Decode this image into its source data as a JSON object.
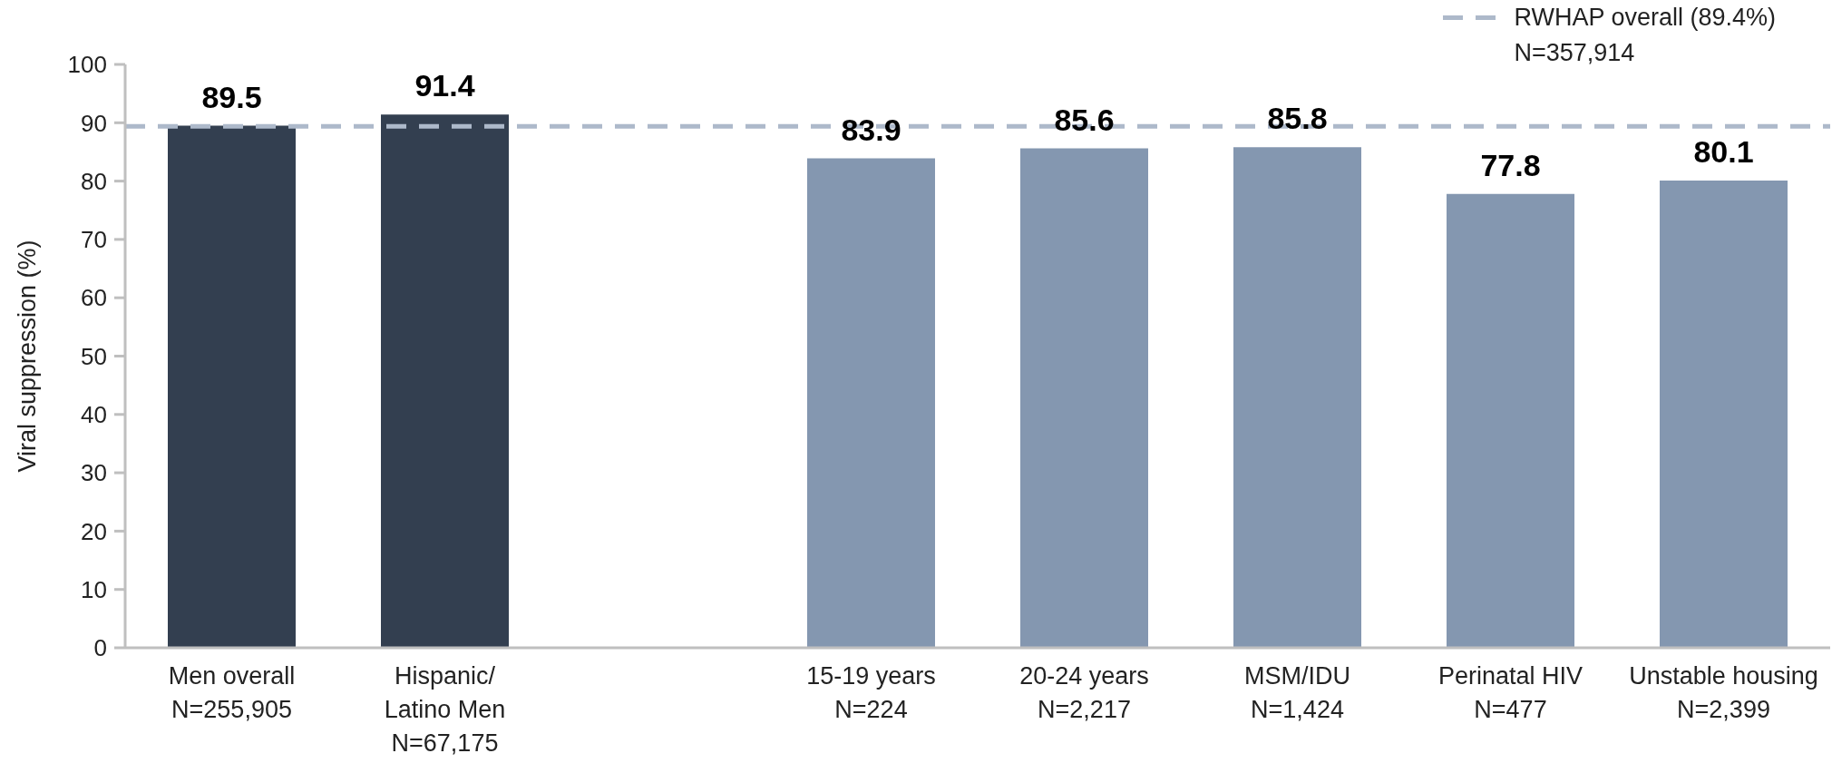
{
  "chart_data": {
    "type": "bar",
    "ylabel": "Viral suppression (%)",
    "categories": [
      "Men overall\nN=255,905",
      "Hispanic/\nLatino Men\nN=67,175",
      null,
      "15-19 years\nN=224",
      "20-24 years\nN=2,217",
      "MSM/IDU\nN=1,424",
      "Perinatal HIV\nN=477",
      "Unstable housing\nN=2,399"
    ],
    "values": [
      89.5,
      91.4,
      null,
      83.9,
      85.6,
      85.8,
      77.8,
      80.1
    ],
    "colors": [
      "#333f50",
      "#333f50",
      null,
      "#8497b0",
      "#8497b0",
      "#8497b0",
      "#8497b0",
      "#8497b0"
    ],
    "ylim": [
      0,
      100
    ],
    "yticks": [
      0,
      10,
      20,
      30,
      40,
      50,
      60,
      70,
      80,
      90,
      100
    ],
    "data_labels": true,
    "ref_lines": [
      {
        "axis": "y",
        "value": 89.4,
        "label": "RWHAP overall (89.4%)\nN=357,914",
        "color": "#adb9ca",
        "line_style": "dashed"
      }
    ],
    "legend": "top right"
  }
}
